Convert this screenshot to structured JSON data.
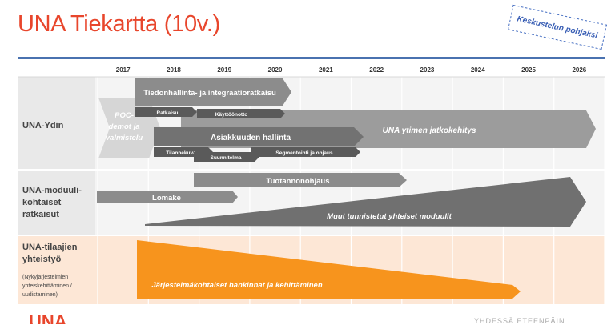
{
  "title": "UNA Tiekartta (10v.)",
  "stamp": "Keskustelun pohjaksi",
  "years": [
    "2017",
    "2018",
    "2019",
    "2020",
    "2021",
    "2022",
    "2023",
    "2024",
    "2025",
    "2026"
  ],
  "rows": {
    "ydin": "UNA-Ydin",
    "moduuli": [
      "UNA-moduuli-",
      "kohtaiset",
      "ratkaisut"
    ],
    "tilaajien": [
      "UNA-tilaajien",
      "yhteistyö"
    ],
    "tilaajien_note": [
      "(Nykyjärjestelmien",
      "yhteiskehittäminen /",
      "uudistaminen)"
    ]
  },
  "bars": {
    "poc": [
      "POC-",
      "demot ja",
      "valmistelu"
    ],
    "tiedonhallinta": "Tiedonhallinta- ja integraatioratkaisu",
    "ratkaisu": "Ratkaisu",
    "kayttoonotto": "Käyttöönotto",
    "ydin_jatko": "UNA ytimen jatkokehitys",
    "asiakkuus": "Asiakkuuden hallinta",
    "tilannekuva": "Tilannekuva",
    "suunnitelma": "Suunnitelma",
    "segmentointi": "Segmentointi ja ohjaus",
    "tuotanto": "Tuotannonohjaus",
    "lomake": "Lomake",
    "muut": "Muut tunnistetut yhteiset moduulit",
    "jarjestelma": "Järjestelmäkohtaiset hankinnat ja kehittäminen"
  },
  "footer": {
    "logo": "UNA",
    "text": "YHDESSÄ ETEENPÄIN"
  },
  "colors": {
    "accent": "#e8462c",
    "dark_bar": "#6f6f6f",
    "orange": "#f7941d",
    "peach": "#fde7d6",
    "grid_bg": "#f2f2f2"
  }
}
